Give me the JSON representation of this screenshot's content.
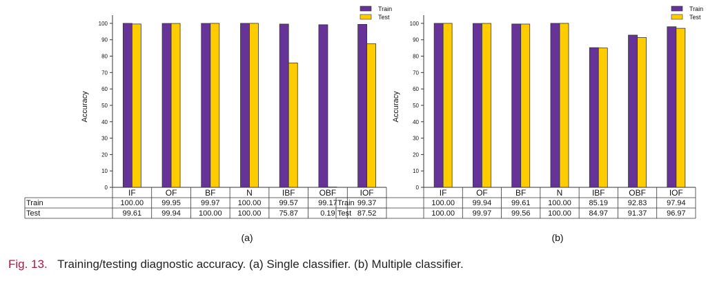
{
  "colors": {
    "train": "#663399",
    "test": "#ffcc00"
  },
  "chart_data": [
    {
      "type": "bar",
      "ylabel": "Accuracy",
      "ylim": [
        0,
        105
      ],
      "yticks": [
        "0",
        "10",
        "20",
        "30",
        "40",
        "50",
        "60",
        "70",
        "80",
        "90",
        "100"
      ],
      "categories": [
        "IF",
        "OF",
        "BF",
        "N",
        "IBF",
        "OBF",
        "IOF"
      ],
      "series": [
        {
          "name": "Train",
          "values": [
            100.0,
            99.95,
            99.97,
            100.0,
            99.57,
            99.17,
            99.37
          ],
          "labels": [
            "100.00",
            "99.95",
            "99.97",
            "100.00",
            "99.57",
            "99.17",
            "99.37"
          ]
        },
        {
          "name": "Test",
          "values": [
            99.61,
            99.94,
            100.0,
            100.0,
            75.87,
            0.19,
            87.52
          ],
          "labels": [
            "99.61",
            "99.94",
            "100.00",
            "100.00",
            "75.87",
            "0.19",
            "87.52"
          ]
        }
      ],
      "legend": "top-right",
      "sublabel": "(a)"
    },
    {
      "type": "bar",
      "ylabel": "Accuracy",
      "ylim": [
        0,
        105
      ],
      "yticks": [
        "0",
        "10",
        "20",
        "30",
        "40",
        "50",
        "60",
        "70",
        "80",
        "90",
        "100"
      ],
      "categories": [
        "IF",
        "OF",
        "BF",
        "N",
        "IBF",
        "OBF",
        "IOF"
      ],
      "series": [
        {
          "name": "Train",
          "values": [
            100.0,
            99.94,
            99.61,
            100.0,
            85.19,
            92.83,
            97.94
          ],
          "labels": [
            "100.00",
            "99.94",
            "99.61",
            "100.00",
            "85.19",
            "92.83",
            "97.94"
          ]
        },
        {
          "name": "Test",
          "values": [
            100.0,
            99.97,
            99.56,
            100.0,
            84.97,
            91.37,
            96.97
          ],
          "labels": [
            "100.00",
            "99.97",
            "99.56",
            "100.00",
            "84.97",
            "91.37",
            "96.97"
          ]
        }
      ],
      "legend": "top-right",
      "sublabel": "(b)"
    }
  ],
  "caption": {
    "figure": "Fig. 13.",
    "text": "Training/testing diagnostic accuracy. (a) Single classifier. (b) Multiple classifier."
  }
}
